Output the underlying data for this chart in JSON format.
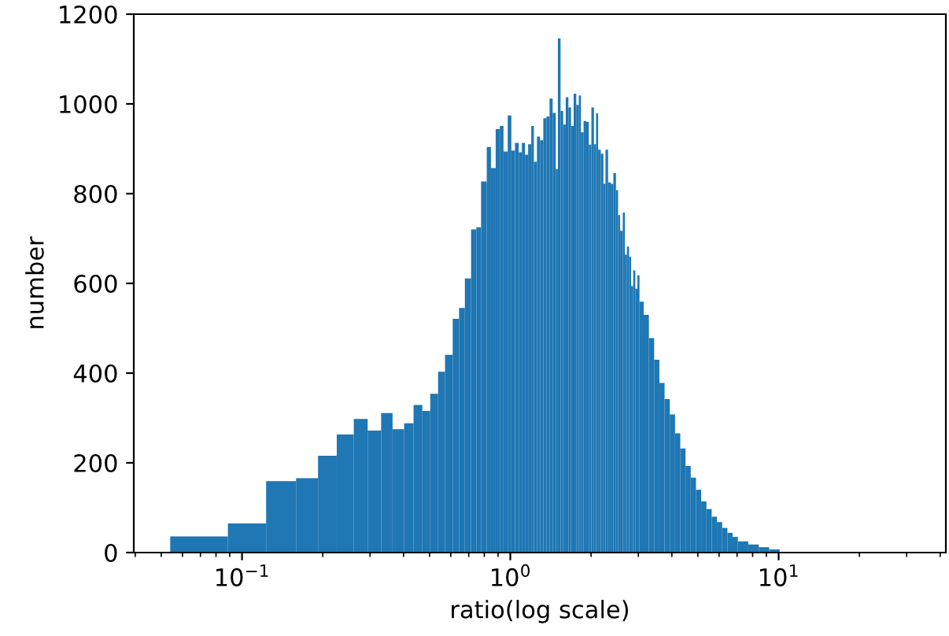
{
  "chart_data": {
    "type": "histogram",
    "xlabel": "ratio(log scale)",
    "ylabel": "number",
    "color": "#1f77b4",
    "log": "x",
    "bins": [
      0.054,
      0.0886,
      0.123,
      0.159,
      0.192,
      0.2255,
      0.261,
      0.294,
      0.33,
      0.364,
      0.402,
      0.436,
      0.47,
      0.503,
      0.538,
      0.571,
      0.61,
      0.644,
      0.677,
      0.714,
      0.747,
      0.778,
      0.817,
      0.847,
      0.882,
      0.914,
      0.943,
      0.978,
      1.009,
      1.041,
      1.075,
      1.104,
      1.134,
      1.165,
      1.197,
      1.224,
      1.257,
      1.291,
      1.327,
      1.363,
      1.4,
      1.438,
      1.477,
      1.504,
      1.539,
      1.574,
      1.609,
      1.646,
      1.684,
      1.722,
      1.761,
      1.8,
      1.833,
      1.875,
      1.918,
      1.961,
      2.005,
      2.05,
      2.087,
      2.125,
      2.174,
      2.223,
      2.263,
      2.314,
      2.367,
      2.421,
      2.476,
      2.521,
      2.566,
      2.625,
      2.673,
      2.721,
      2.77,
      2.82,
      2.871,
      2.923,
      2.976,
      3.03,
      3.141,
      3.285,
      3.436,
      3.594,
      3.758,
      3.931,
      4.111,
      4.3,
      4.498,
      4.704,
      4.92,
      5.146,
      5.383,
      5.63,
      5.888,
      6.158,
      6.442,
      6.737,
      7.047,
      7.706,
      8.432,
      9.224,
      10.09
    ],
    "values": [
      36,
      65,
      159,
      166,
      216,
      263,
      298,
      272,
      311,
      275,
      288,
      329,
      316,
      354,
      403,
      441,
      521,
      545,
      611,
      720,
      725,
      827,
      904,
      857,
      944,
      951,
      894,
      974,
      896,
      913,
      892,
      913,
      887,
      910,
      951,
      871,
      927,
      919,
      968,
      972,
      1012,
      980,
      855,
      1146,
      984,
      954,
      1015,
      992,
      951,
      1023,
      998,
      1019,
      937,
      962,
      960,
      909,
      992,
      910,
      979,
      898,
      889,
      822,
      898,
      825,
      822,
      846,
      808,
      752,
      717,
      758,
      664,
      682,
      659,
      594,
      629,
      588,
      618,
      559,
      530,
      478,
      430,
      378,
      342,
      308,
      266,
      232,
      193,
      167,
      140,
      114,
      97,
      80,
      68,
      55,
      44,
      35,
      25,
      18,
      12,
      7
    ],
    "xlim": [
      0.0395,
      42
    ],
    "ylim": [
      0,
      1200
    ],
    "xticks": [
      {
        "value": 0.1,
        "label": "10$^{−1}$"
      },
      {
        "value": 1,
        "label": "10$^{0}$"
      },
      {
        "value": 10,
        "label": "10$^{1}$"
      }
    ],
    "yticks": [
      0,
      200,
      400,
      600,
      800,
      1000,
      1200
    ]
  }
}
